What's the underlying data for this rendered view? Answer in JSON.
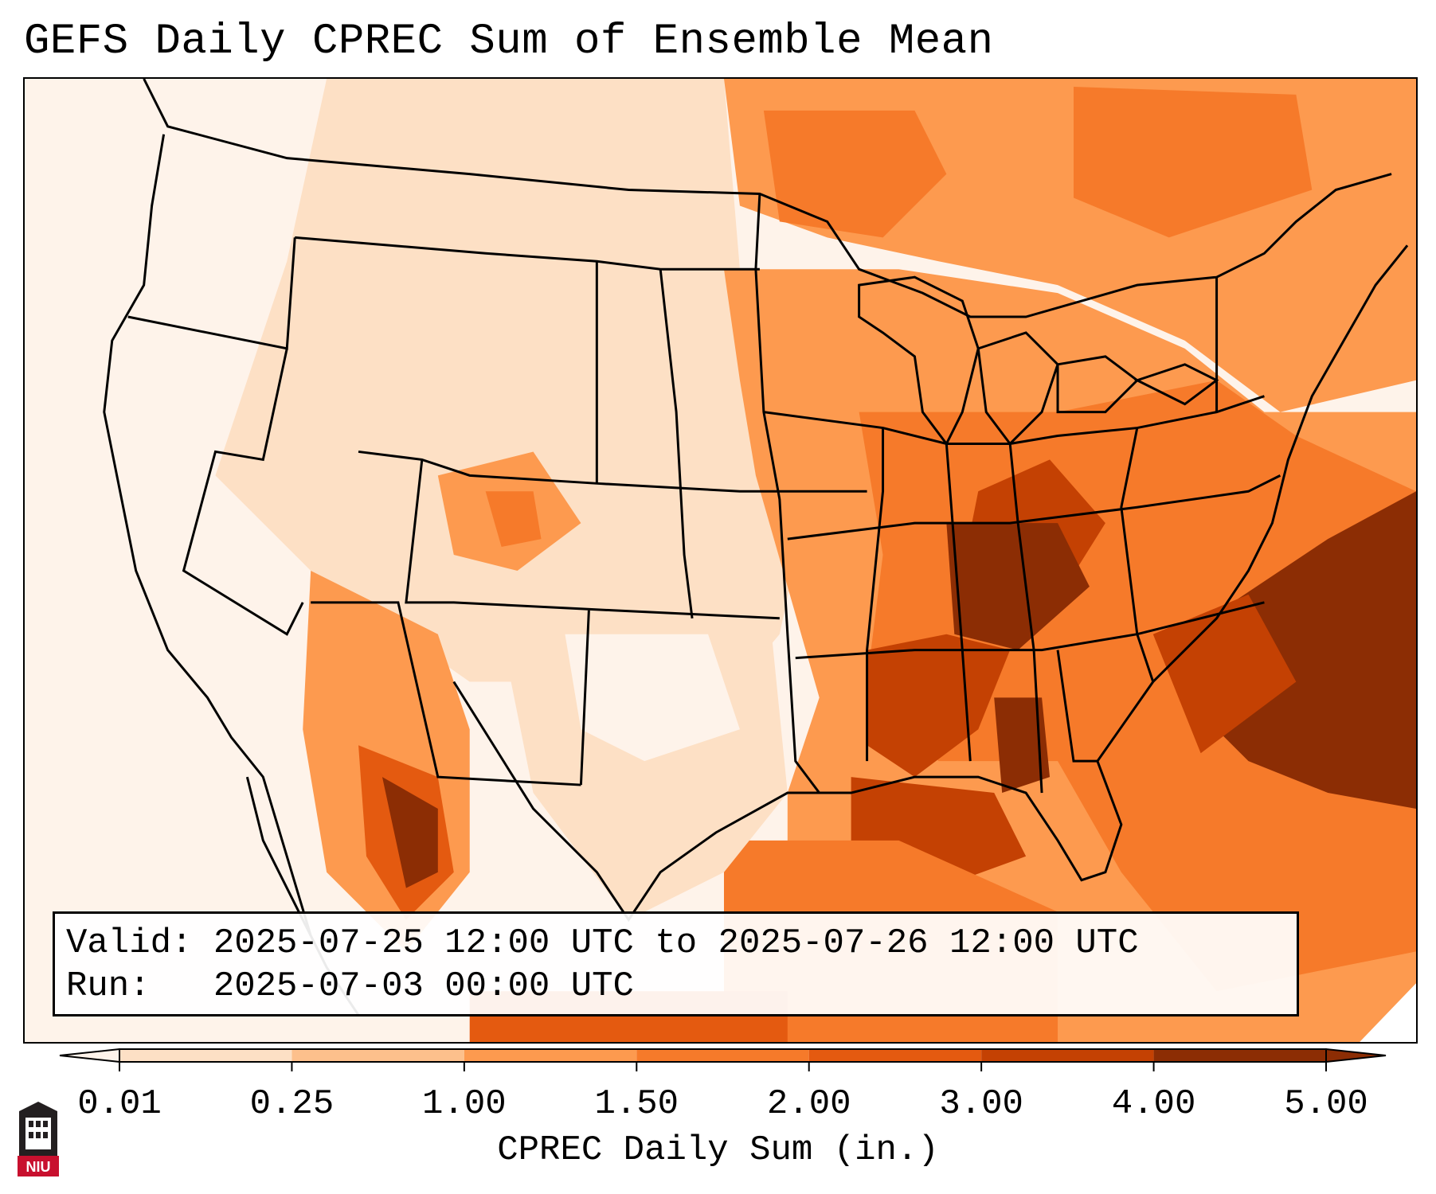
{
  "title": "GEFS Daily CPREC Sum of Ensemble Mean",
  "info": {
    "valid_line": "Valid: 2025-07-25 12:00 UTC to 2025-07-26 12:00 UTC",
    "run_line": "Run:   2025-07-03 00:00 UTC"
  },
  "colorbar": {
    "label": "CPREC Daily Sum (in.)",
    "ticks": [
      "0.01",
      "0.25",
      "1.00",
      "1.50",
      "2.00",
      "3.00",
      "4.00",
      "5.00"
    ],
    "colors": [
      "#fef3ea",
      "#fde0c5",
      "#fdc08c",
      "#fd9a4f",
      "#f67a2a",
      "#e45a10",
      "#c44103",
      "#8c2d04"
    ],
    "extend": "both"
  },
  "logo": {
    "text": "NIU"
  }
}
